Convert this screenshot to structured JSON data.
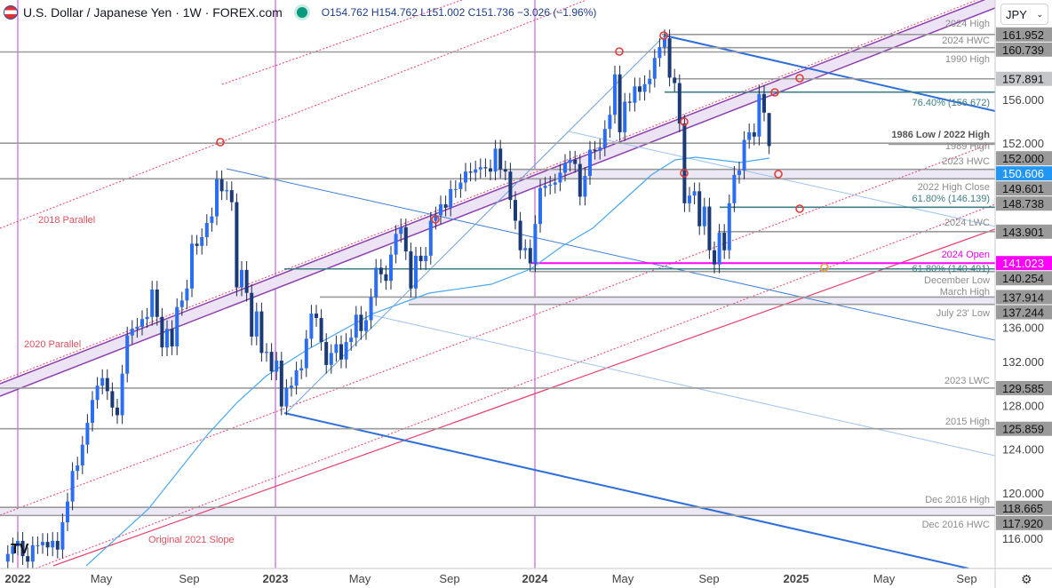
{
  "header": {
    "title": "U.S. Dollar / Japanese Yen · 1W · FOREX.com",
    "ohlc": "O154.762 H154.762 L151.002 C151.736 −3.026 (−1.96%)"
  },
  "currency_selector": "JPY",
  "colors": {
    "up": "#2b6ef2",
    "down": "#1b3a78",
    "ma": "#4aa8f0",
    "channel": "#8e3fb0",
    "slope": "#e8406a",
    "vertical": "#c23fd6",
    "fib": "#3e7f86",
    "level": "#9a9a9a"
  },
  "chart_data": {
    "type": "candlestick",
    "title": "U.S. Dollar / Japanese Yen · 1W · FOREX.com",
    "interval": "weekly",
    "first_week": "2021-12-13",
    "closes": [
      113.7,
      114.4,
      115.1,
      115.6,
      114.2,
      113.7,
      115.2,
      115.2,
      115.5,
      115.0,
      115.6,
      114.8,
      117.3,
      119.2,
      122.0,
      122.5,
      124.4,
      126.4,
      128.5,
      129.8,
      130.5,
      129.3,
      127.8,
      127.1,
      130.9,
      134.4,
      135.0,
      135.2,
      135.9,
      136.1,
      138.6,
      136.1,
      133.3,
      135.0,
      133.4,
      137.0,
      137.6,
      138.7,
      142.8,
      142.6,
      143.4,
      144.7,
      145.3,
      148.7,
      147.6,
      147.7,
      146.6,
      138.8,
      140.4,
      138.3,
      134.3,
      136.6,
      132.8,
      132.9,
      131.1,
      132.1,
      127.9,
      129.6,
      129.8,
      131.2,
      131.4,
      134.1,
      136.4,
      136.0,
      133.8,
      131.7,
      132.8,
      133.6,
      132.2,
      133.8,
      134.2,
      136.3,
      134.8,
      135.8,
      137.9,
      140.6,
      140.0,
      139.4,
      141.8,
      143.7,
      144.3,
      142.1,
      138.7,
      141.7,
      141.2,
      141.7,
      144.9,
      145.4,
      146.4,
      146.1,
      147.8,
      147.8,
      148.4,
      149.4,
      149.3,
      149.6,
      149.8,
      149.7,
      149.4,
      151.5,
      149.6,
      149.4,
      146.8,
      144.9,
      142.2,
      142.4,
      141.0,
      144.6,
      147.9,
      148.1,
      148.2,
      148.4,
      149.3,
      150.2,
      150.5,
      150.1,
      147.1,
      149.0,
      151.4,
      151.3,
      151.6,
      153.3,
      154.6,
      158.3,
      153.0,
      155.8,
      155.7,
      157.2,
      156.7,
      157.4,
      157.9,
      159.8,
      160.8,
      161.6,
      158.0,
      157.5,
      153.8,
      146.5,
      147.2,
      147.6,
      144.4,
      146.2,
      142.2,
      140.9,
      143.8,
      142.2,
      146.5,
      149.1,
      149.5,
      152.3,
      153.0,
      152.6,
      156.5,
      154.8,
      151.736
    ],
    "last_candle": {
      "open": 154.762,
      "high": 154.762,
      "low": 151.002,
      "close": 151.736
    },
    "x_ticks": [
      "2022",
      "May",
      "Sep",
      "2023",
      "May",
      "Sep",
      "2024",
      "May",
      "Sep",
      "2025",
      "May",
      "Sep"
    ],
    "y_ticks": [
      "156.000",
      "152.000",
      "136.000",
      "132.000",
      "128.000",
      "124.000",
      "120.000",
      "116.000"
    ],
    "ylim": [
      114,
      165
    ],
    "levels": [
      {
        "price": 161.952,
        "label": "2024 High",
        "tag": "161.952"
      },
      {
        "price": 160.739,
        "label": "2024 HWC",
        "tag": "160.739"
      },
      {
        "price": 160.35,
        "label": "1990 High",
        "tag": ""
      },
      {
        "price": 157.891,
        "label": "",
        "tag": "157.891"
      },
      {
        "price": 156.672,
        "label": "76.40% (156.672)",
        "tag": "",
        "fib": true
      },
      {
        "price": 152.0,
        "label": "1986 Low / 2022 High",
        "tag": "152.000"
      },
      {
        "price": 151.9,
        "label": "1989 High",
        "tag": ""
      },
      {
        "price": 149.601,
        "label": "2023 HWC",
        "tag": "149.601"
      },
      {
        "price": 148.738,
        "label": "2022 High Close",
        "tag": "148.738"
      },
      {
        "price": 146.139,
        "label": "61.80% (146.139)",
        "tag": "",
        "fib": true
      },
      {
        "price": 143.901,
        "label": "2024 LWC",
        "tag": "143.901"
      },
      {
        "price": 141.023,
        "label": "2024 Open",
        "tag": "141.023",
        "magenta": true
      },
      {
        "price": 140.491,
        "label": "61.80% (140.491)",
        "tag": "",
        "fib": true
      },
      {
        "price": 140.254,
        "label": "December Low",
        "tag": "140.254"
      },
      {
        "price": 137.914,
        "label": "March High",
        "tag": "137.914"
      },
      {
        "price": 137.244,
        "label": "July 23' Low",
        "tag": "137.244"
      },
      {
        "price": 129.585,
        "label": "2023 LWC",
        "tag": "129.585"
      },
      {
        "price": 125.859,
        "label": "2015 High",
        "tag": "125.859"
      },
      {
        "price": 118.665,
        "label": "Dec 2016 High",
        "tag": "118.665"
      },
      {
        "price": 117.92,
        "label": "Dec 2016 HWC",
        "tag": "117.920"
      }
    ],
    "ma_tag": "150.606",
    "annotations": [
      "2018 Parallel",
      "2020 Parallel",
      "Original 2021 Slope"
    ]
  }
}
